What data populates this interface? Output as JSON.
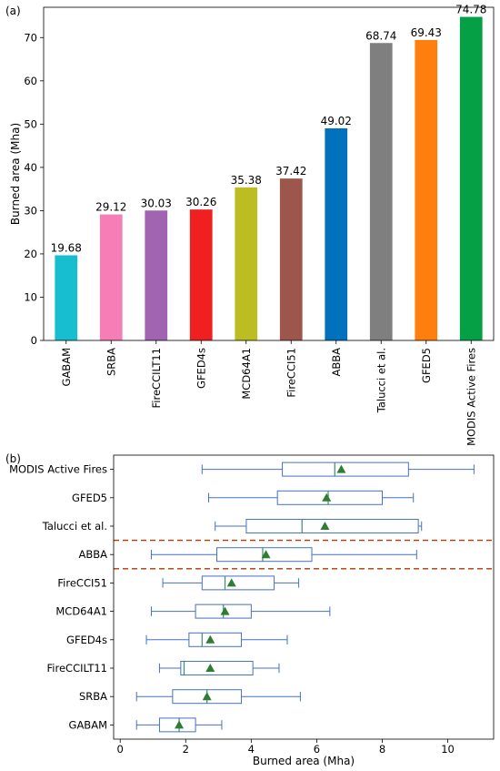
{
  "chart_data": [
    {
      "type": "bar",
      "panel_label": "(a)",
      "categories": [
        "GABAM",
        "SRBA",
        "FireCCILT11",
        "GFED4s",
        "MCD64A1",
        "FireCCI51",
        "ABBA",
        "Talucci et al.",
        "GFED5",
        "MODIS Active Fires"
      ],
      "values": [
        19.68,
        29.12,
        30.03,
        30.26,
        35.38,
        37.42,
        49.02,
        68.74,
        69.43,
        74.78
      ],
      "value_labels": [
        "19.68",
        "29.12",
        "30.03",
        "30.26",
        "35.38",
        "37.42",
        "49.02",
        "68.74",
        "69.43",
        "74.78"
      ],
      "colors": [
        "#17becf",
        "#f47eb5",
        "#a064b0",
        "#f02020",
        "#bcbd22",
        "#9c564b",
        "#0072bd",
        "#7f7f7f",
        "#ff7f0e",
        "#05a045"
      ],
      "xlabel": "",
      "ylabel": "Burned area (Mha)",
      "ylim": [
        0,
        77
      ],
      "yticks": [
        0,
        10,
        20,
        30,
        40,
        50,
        60,
        70
      ],
      "grid": false
    },
    {
      "type": "box",
      "panel_label": "(b)",
      "orientation": "horizontal",
      "categories": [
        "GABAM",
        "SRBA",
        "FireCCILT11",
        "GFED4s",
        "MCD64A1",
        "FireCCI51",
        "ABBA",
        "Talucci et al.",
        "GFED5",
        "MODIS Active Fires"
      ],
      "series": [
        {
          "name": "GABAM",
          "whisker_low": 0.5,
          "q1": 1.2,
          "median": 1.8,
          "q3": 2.3,
          "whisker_high": 3.1,
          "mean": 1.8
        },
        {
          "name": "SRBA",
          "whisker_low": 0.5,
          "q1": 1.6,
          "median": 2.65,
          "q3": 3.7,
          "whisker_high": 5.5,
          "mean": 2.65
        },
        {
          "name": "FireCCILT11",
          "whisker_low": 1.2,
          "q1": 1.85,
          "median": 1.95,
          "q3": 4.05,
          "whisker_high": 4.85,
          "mean": 2.75
        },
        {
          "name": "GFED4s",
          "whisker_low": 0.8,
          "q1": 2.1,
          "median": 2.5,
          "q3": 3.7,
          "whisker_high": 5.1,
          "mean": 2.75
        },
        {
          "name": "MCD64A1",
          "whisker_low": 0.95,
          "q1": 2.3,
          "median": 3.15,
          "q3": 4.0,
          "whisker_high": 6.4,
          "mean": 3.2
        },
        {
          "name": "FireCCI51",
          "whisker_low": 1.3,
          "q1": 2.5,
          "median": 3.2,
          "q3": 4.7,
          "whisker_high": 5.45,
          "mean": 3.4
        },
        {
          "name": "ABBA",
          "whisker_low": 0.95,
          "q1": 2.95,
          "median": 4.35,
          "q3": 5.85,
          "whisker_high": 9.05,
          "mean": 4.45
        },
        {
          "name": "Talucci et al.",
          "whisker_low": 2.9,
          "q1": 3.85,
          "median": 5.55,
          "q3": 9.1,
          "whisker_high": 9.2,
          "mean": 6.25
        },
        {
          "name": "GFED5",
          "whisker_low": 2.7,
          "q1": 4.8,
          "median": 6.35,
          "q3": 8.0,
          "whisker_high": 8.95,
          "mean": 6.3
        },
        {
          "name": "MODIS Active Fires",
          "whisker_low": 2.5,
          "q1": 4.95,
          "median": 6.55,
          "q3": 8.8,
          "whisker_high": 10.8,
          "mean": 6.75
        }
      ],
      "xlabel": "Burned area (Mha)",
      "ylabel": "",
      "xlim": [
        -0.2,
        11.4
      ],
      "xticks": [
        0,
        2,
        4,
        6,
        8,
        10
      ],
      "box_color": "#4472c4",
      "mean_marker_color": "#2e7d32",
      "separator_color": "#b03a00",
      "separators_between": [
        [
          "Talucci et al.",
          "ABBA"
        ],
        [
          "ABBA",
          "FireCCI51"
        ]
      ],
      "grid": false
    }
  ]
}
